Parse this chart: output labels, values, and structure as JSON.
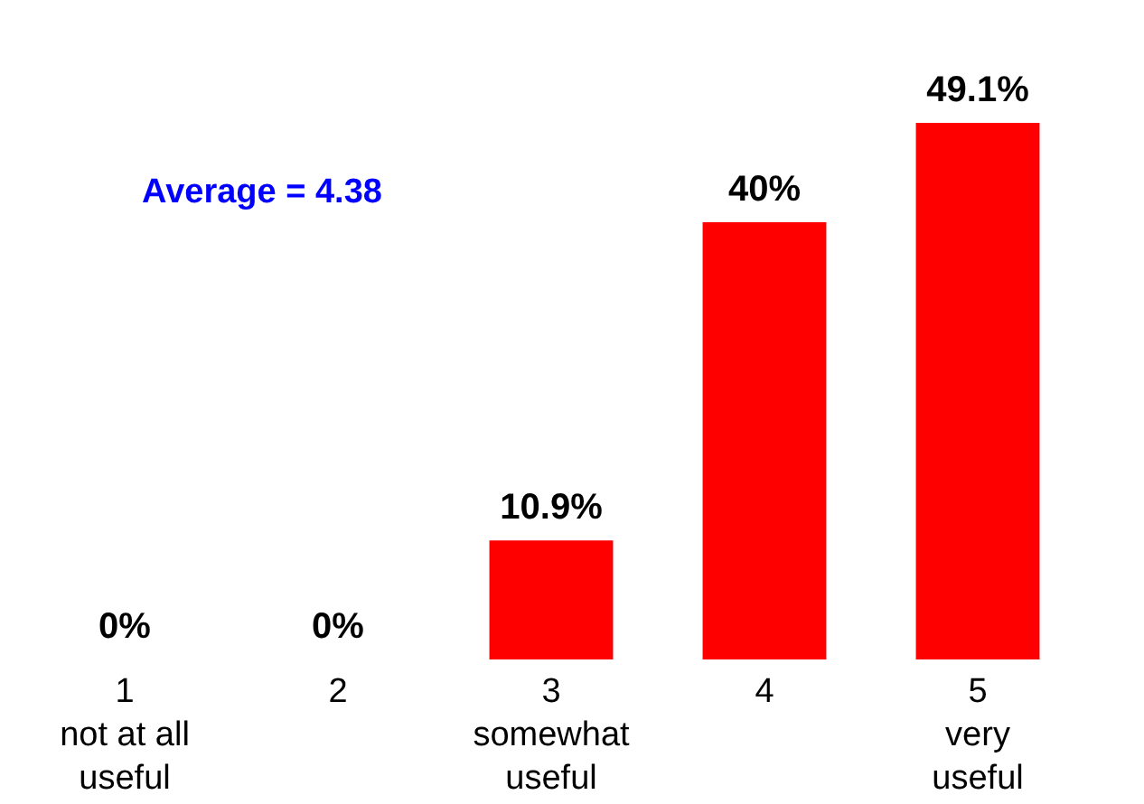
{
  "chart_data": {
    "type": "bar",
    "categories": [
      "1\nnot at all\nuseful",
      "2",
      "3\nsomewhat\nuseful",
      "4",
      "5\nvery\nuseful"
    ],
    "values": [
      0,
      0,
      10.9,
      40,
      49.1
    ],
    "value_labels": [
      "0%",
      "0%",
      "10.9%",
      "40%",
      "49.1%"
    ],
    "color": "#ff0000",
    "annotations": [
      "Average = 4.38"
    ],
    "grid": false
  }
}
